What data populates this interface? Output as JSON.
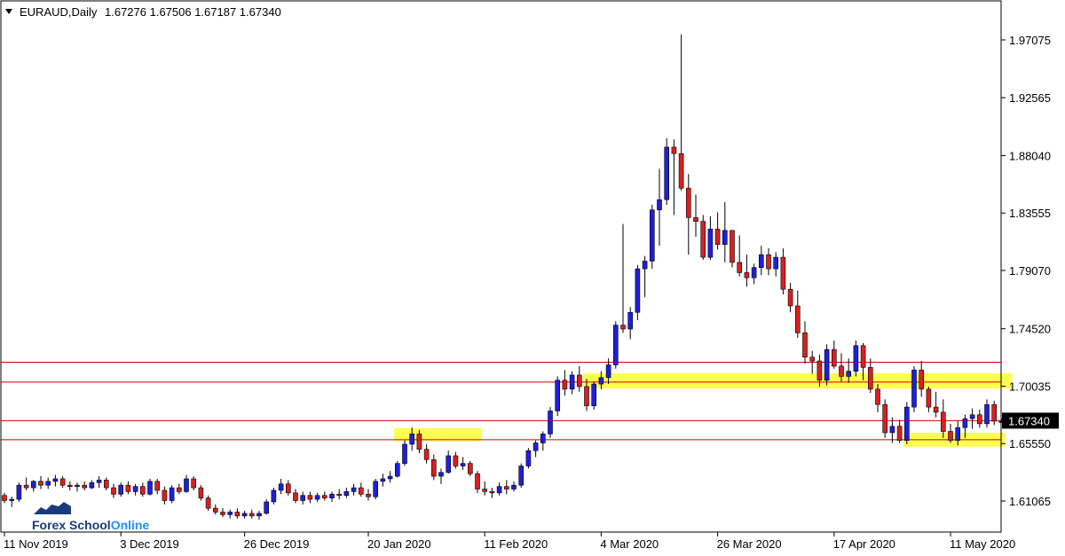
{
  "header": {
    "symbol_label": "EURAUD,Daily",
    "ohlc_label": "1.67276 1.67506 1.67187 1.67340"
  },
  "logo": {
    "part1": "Forex School",
    "part2": "Online",
    "color1": "#1a3a7a",
    "color2": "#1e90ff"
  },
  "colors": {
    "bull": "#1f1fdc",
    "bear": "#dc1f1f",
    "level_line": "#cc0000",
    "zone": "#ffff33",
    "current_box": "#000000"
  },
  "chart_data": {
    "type": "candlestick",
    "symbol": "EURAUD",
    "timeframe": "Daily",
    "y_ticks": [
      "1.97075",
      "1.92565",
      "1.88040",
      "1.83555",
      "1.79070",
      "1.74520",
      "1.70035",
      "1.65550",
      "1.61065"
    ],
    "x_ticks": [
      "11 Nov 2019",
      "3 Dec 2019",
      "26 Dec 2019",
      "20 Jan 2020",
      "11 Feb 2020",
      "4 Mar 2020",
      "26 Mar 2020",
      "17 Apr 2020",
      "11 May 2020"
    ],
    "x_tick_index": [
      0,
      16,
      33,
      50,
      66,
      82,
      98,
      114,
      130
    ],
    "current_price": "1.67340",
    "levels": [
      1.719,
      1.7035,
      1.6734,
      1.6585
    ],
    "zones": [
      {
        "start": 54,
        "end": 65,
        "low": 1.6575,
        "high": 1.6675
      },
      {
        "start": 80,
        "end": 138,
        "low": 1.6985,
        "high": 1.7105
      },
      {
        "start": 124,
        "end": 137,
        "low": 1.653,
        "high": 1.664
      }
    ],
    "ohlc": [
      [
        1.615,
        1.617,
        1.609,
        1.611
      ],
      [
        1.611,
        1.614,
        1.606,
        1.612
      ],
      [
        1.612,
        1.625,
        1.61,
        1.623
      ],
      [
        1.623,
        1.629,
        1.619,
        1.621
      ],
      [
        1.621,
        1.627,
        1.618,
        1.626
      ],
      [
        1.626,
        1.63,
        1.62,
        1.623
      ],
      [
        1.623,
        1.629,
        1.62,
        1.626
      ],
      [
        1.626,
        1.631,
        1.622,
        1.628
      ],
      [
        1.628,
        1.63,
        1.621,
        1.623
      ],
      [
        1.623,
        1.626,
        1.619,
        1.622
      ],
      [
        1.622,
        1.625,
        1.618,
        1.623
      ],
      [
        1.623,
        1.626,
        1.619,
        1.621
      ],
      [
        1.621,
        1.627,
        1.62,
        1.625
      ],
      [
        1.625,
        1.63,
        1.621,
        1.627
      ],
      [
        1.627,
        1.629,
        1.619,
        1.621
      ],
      [
        1.621,
        1.624,
        1.613,
        1.616
      ],
      [
        1.616,
        1.625,
        1.614,
        1.623
      ],
      [
        1.623,
        1.626,
        1.616,
        1.618
      ],
      [
        1.618,
        1.624,
        1.615,
        1.622
      ],
      [
        1.622,
        1.625,
        1.614,
        1.616
      ],
      [
        1.616,
        1.628,
        1.615,
        1.626
      ],
      [
        1.626,
        1.628,
        1.616,
        1.619
      ],
      [
        1.619,
        1.622,
        1.608,
        1.611
      ],
      [
        1.611,
        1.623,
        1.609,
        1.621
      ],
      [
        1.621,
        1.624,
        1.616,
        1.618
      ],
      [
        1.618,
        1.631,
        1.617,
        1.628
      ],
      [
        1.628,
        1.63,
        1.619,
        1.621
      ],
      [
        1.621,
        1.623,
        1.611,
        1.613
      ],
      [
        1.613,
        1.615,
        1.603,
        1.605
      ],
      [
        1.605,
        1.608,
        1.6,
        1.602
      ],
      [
        1.602,
        1.605,
        1.598,
        1.6
      ],
      [
        1.6,
        1.604,
        1.597,
        1.602
      ],
      [
        1.602,
        1.605,
        1.597,
        1.599
      ],
      [
        1.599,
        1.603,
        1.597,
        1.601
      ],
      [
        1.601,
        1.604,
        1.597,
        1.599
      ],
      [
        1.599,
        1.603,
        1.596,
        1.601
      ],
      [
        1.601,
        1.612,
        1.6,
        1.61
      ],
      [
        1.61,
        1.621,
        1.608,
        1.619
      ],
      [
        1.619,
        1.628,
        1.616,
        1.624
      ],
      [
        1.624,
        1.627,
        1.615,
        1.617
      ],
      [
        1.617,
        1.62,
        1.609,
        1.611
      ],
      [
        1.611,
        1.618,
        1.608,
        1.615
      ],
      [
        1.615,
        1.618,
        1.609,
        1.612
      ],
      [
        1.612,
        1.617,
        1.61,
        1.615
      ],
      [
        1.615,
        1.618,
        1.611,
        1.613
      ],
      [
        1.613,
        1.618,
        1.61,
        1.616
      ],
      [
        1.616,
        1.62,
        1.612,
        1.615
      ],
      [
        1.615,
        1.621,
        1.613,
        1.618
      ],
      [
        1.618,
        1.624,
        1.615,
        1.621
      ],
      [
        1.621,
        1.625,
        1.614,
        1.616
      ],
      [
        1.616,
        1.62,
        1.611,
        1.614
      ],
      [
        1.614,
        1.628,
        1.612,
        1.626
      ],
      [
        1.626,
        1.632,
        1.622,
        1.628
      ],
      [
        1.628,
        1.634,
        1.625,
        1.63
      ],
      [
        1.63,
        1.642,
        1.629,
        1.64
      ],
      [
        1.64,
        1.658,
        1.638,
        1.655
      ],
      [
        1.655,
        1.668,
        1.65,
        1.663
      ],
      [
        1.663,
        1.666,
        1.648,
        1.651
      ],
      [
        1.651,
        1.655,
        1.64,
        1.643
      ],
      [
        1.643,
        1.647,
        1.627,
        1.63
      ],
      [
        1.63,
        1.636,
        1.624,
        1.633
      ],
      [
        1.633,
        1.65,
        1.632,
        1.646
      ],
      [
        1.646,
        1.649,
        1.636,
        1.638
      ],
      [
        1.638,
        1.645,
        1.635,
        1.64
      ],
      [
        1.64,
        1.642,
        1.63,
        1.632
      ],
      [
        1.632,
        1.634,
        1.617,
        1.62
      ],
      [
        1.62,
        1.626,
        1.615,
        1.618
      ],
      [
        1.618,
        1.621,
        1.613,
        1.617
      ],
      [
        1.617,
        1.625,
        1.615,
        1.622
      ],
      [
        1.622,
        1.627,
        1.616,
        1.62
      ],
      [
        1.62,
        1.626,
        1.618,
        1.623
      ],
      [
        1.623,
        1.64,
        1.621,
        1.638
      ],
      [
        1.638,
        1.652,
        1.636,
        1.65
      ],
      [
        1.65,
        1.658,
        1.645,
        1.656
      ],
      [
        1.656,
        1.665,
        1.65,
        1.663
      ],
      [
        1.663,
        1.684,
        1.66,
        1.681
      ],
      [
        1.681,
        1.708,
        1.677,
        1.705
      ],
      [
        1.705,
        1.713,
        1.693,
        1.698
      ],
      [
        1.698,
        1.712,
        1.694,
        1.709
      ],
      [
        1.709,
        1.716,
        1.696,
        1.7
      ],
      [
        1.7,
        1.706,
        1.681,
        1.685
      ],
      [
        1.685,
        1.704,
        1.682,
        1.702
      ],
      [
        1.702,
        1.712,
        1.698,
        1.707
      ],
      [
        1.707,
        1.722,
        1.702,
        1.717
      ],
      [
        1.717,
        1.751,
        1.714,
        1.748
      ],
      [
        1.748,
        1.827,
        1.742,
        1.745
      ],
      [
        1.745,
        1.762,
        1.737,
        1.758
      ],
      [
        1.758,
        1.795,
        1.752,
        1.792
      ],
      [
        1.792,
        1.802,
        1.77,
        1.798
      ],
      [
        1.798,
        1.842,
        1.792,
        1.838
      ],
      [
        1.838,
        1.87,
        1.81,
        1.846
      ],
      [
        1.846,
        1.894,
        1.842,
        1.887
      ],
      [
        1.887,
        1.893,
        1.834,
        1.882
      ],
      [
        1.882,
        1.975,
        1.853,
        1.855
      ],
      [
        1.855,
        1.866,
        1.803,
        1.832
      ],
      [
        1.832,
        1.85,
        1.817,
        1.829
      ],
      [
        1.829,
        1.834,
        1.799,
        1.801
      ],
      [
        1.801,
        1.833,
        1.799,
        1.823
      ],
      [
        1.823,
        1.836,
        1.807,
        1.811
      ],
      [
        1.811,
        1.844,
        1.797,
        1.822
      ],
      [
        1.822,
        1.822,
        1.793,
        1.797
      ],
      [
        1.797,
        1.818,
        1.786,
        1.789
      ],
      [
        1.789,
        1.803,
        1.778,
        1.785
      ],
      [
        1.785,
        1.796,
        1.78,
        1.793
      ],
      [
        1.793,
        1.81,
        1.787,
        1.803
      ],
      [
        1.803,
        1.808,
        1.787,
        1.792
      ],
      [
        1.792,
        1.805,
        1.786,
        1.801
      ],
      [
        1.801,
        1.808,
        1.772,
        1.776
      ],
      [
        1.776,
        1.781,
        1.758,
        1.763
      ],
      [
        1.763,
        1.775,
        1.738,
        1.742
      ],
      [
        1.742,
        1.751,
        1.718,
        1.723
      ],
      [
        1.723,
        1.728,
        1.71,
        1.72
      ],
      [
        1.72,
        1.725,
        1.7,
        1.705
      ],
      [
        1.705,
        1.733,
        1.701,
        1.729
      ],
      [
        1.729,
        1.736,
        1.714,
        1.716
      ],
      [
        1.716,
        1.726,
        1.704,
        1.708
      ],
      [
        1.708,
        1.722,
        1.703,
        1.712
      ],
      [
        1.712,
        1.736,
        1.708,
        1.732
      ],
      [
        1.732,
        1.734,
        1.705,
        1.715
      ],
      [
        1.715,
        1.722,
        1.695,
        1.698
      ],
      [
        1.698,
        1.702,
        1.68,
        1.686
      ],
      [
        1.686,
        1.69,
        1.66,
        1.664
      ],
      [
        1.664,
        1.676,
        1.656,
        1.669
      ],
      [
        1.669,
        1.674,
        1.656,
        1.658
      ],
      [
        1.658,
        1.688,
        1.655,
        1.684
      ],
      [
        1.684,
        1.716,
        1.68,
        1.713
      ],
      [
        1.713,
        1.72,
        1.692,
        1.698
      ],
      [
        1.698,
        1.7,
        1.68,
        1.684
      ],
      [
        1.684,
        1.696,
        1.676,
        1.68
      ],
      [
        1.68,
        1.69,
        1.66,
        1.665
      ],
      [
        1.665,
        1.671,
        1.656,
        1.658
      ],
      [
        1.658,
        1.673,
        1.654,
        1.668
      ],
      [
        1.668,
        1.678,
        1.66,
        1.675
      ],
      [
        1.675,
        1.683,
        1.667,
        1.678
      ],
      [
        1.678,
        1.682,
        1.668,
        1.671
      ],
      [
        1.671,
        1.69,
        1.668,
        1.686
      ],
      [
        1.686,
        1.689,
        1.67,
        1.673
      ],
      [
        1.673,
        1.675,
        1.672,
        1.673
      ]
    ]
  }
}
